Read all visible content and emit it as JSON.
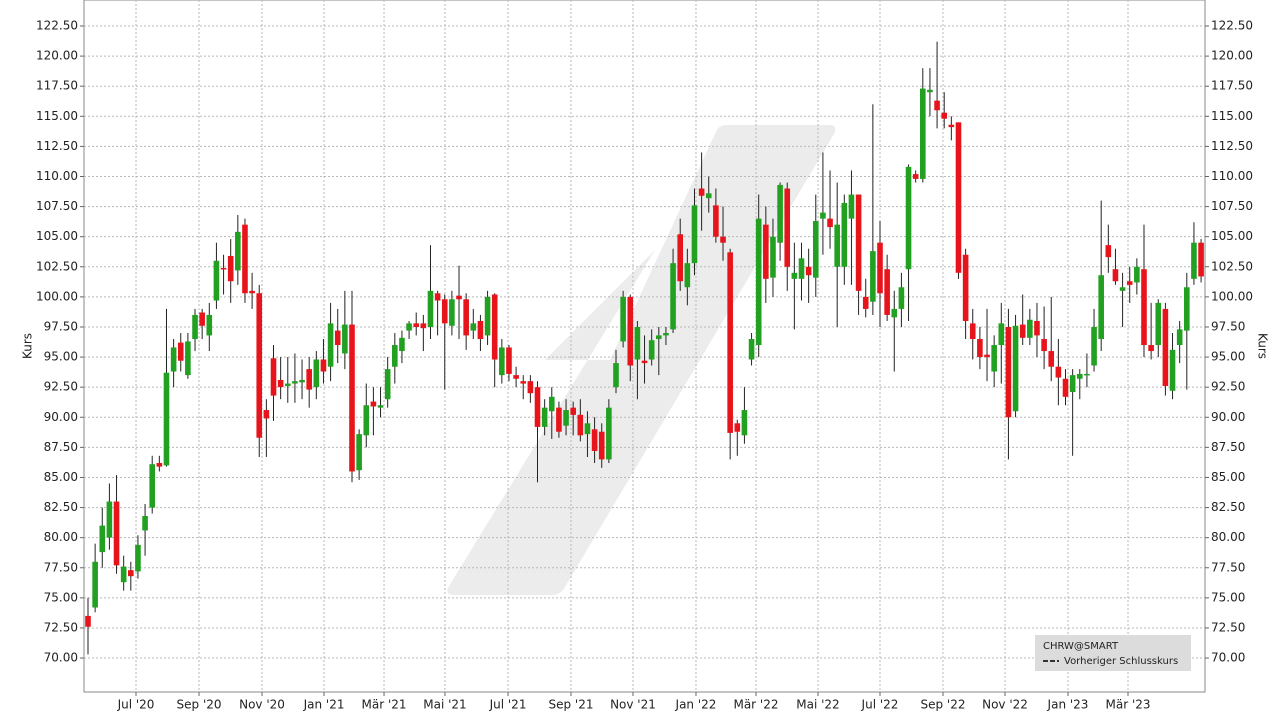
{
  "chart_data": {
    "type": "candlestick",
    "y_label": "Kurs",
    "y2_label": "Kurs",
    "up_color": "#22a022",
    "down_color": "#e8141c",
    "grid": true,
    "legend": "lower right",
    "series": [
      {
        "name": "CHRW@SMART",
        "open": [
          73.5,
          74.2,
          78.8,
          80,
          83,
          76.3,
          77.3,
          77.2,
          80.6,
          82.5,
          86.2,
          86,
          93.8,
          96.2,
          93.5,
          96.5,
          98.7,
          96.8,
          99.7,
          102.4,
          103.4,
          102.2,
          106,
          100.5,
          100.3,
          90.6,
          94.9,
          93.1,
          92.6,
          92.8,
          92.9,
          94,
          92.5,
          94.8,
          94.2,
          97.2,
          95.3,
          97.7,
          85.6,
          88.5,
          91.3,
          90.8,
          91.5,
          94.2,
          95.5,
          97.2,
          97.8,
          97.8,
          97.5,
          100.3,
          99.8,
          97.6,
          100.1,
          99.8,
          97.2,
          98,
          96.8,
          100.2,
          93.5,
          95.8,
          93.5,
          93,
          93,
          92.5,
          89.2,
          90.5,
          90.8,
          89.3,
          90.8,
          90.2,
          88.6,
          89,
          88.8,
          86.5,
          92.5,
          96.3,
          100,
          94.8,
          94.7,
          94.8,
          96.5,
          96.8,
          97.3,
          105.2,
          100.8,
          102.8,
          109,
          108.2,
          107.6,
          105,
          103.7,
          89.5,
          88.5,
          94.8,
          96,
          106,
          101.6,
          104.5,
          109,
          101.5,
          101.5,
          102.5,
          101.6,
          106.5,
          106.5,
          102.5,
          102.5,
          106.5,
          108.5,
          100,
          99.6,
          104.5,
          102.3,
          98.3,
          99,
          102.3,
          110.2,
          109.8,
          117,
          116.3,
          115.3,
          114.3,
          114.5,
          103.5,
          97.8,
          96.5,
          95.2,
          93.8,
          96,
          97.5,
          90.5,
          97.7,
          96.6,
          98,
          96.5,
          95.5,
          94.2,
          93.2,
          92.1,
          93.2,
          93.5,
          94.3,
          96.5,
          104.3,
          102.3,
          100.5,
          101.3,
          101.2,
          102.3,
          96,
          96,
          99,
          92.2,
          96,
          97.2,
          101.5,
          104.5
        ],
        "high": [
          75,
          79.5,
          82.5,
          84.5,
          85.2,
          78.5,
          78,
          80.2,
          82.8,
          86.8,
          86.8,
          99,
          96.5,
          97,
          97,
          99,
          99,
          99.5,
          104.5,
          103.5,
          104.8,
          106.8,
          106.5,
          102,
          101,
          91.5,
          96,
          95,
          95,
          95.3,
          94.8,
          95,
          95.5,
          96.5,
          99.5,
          99,
          100.5,
          100.5,
          89,
          92.8,
          92.5,
          92.5,
          95,
          97,
          97.2,
          98,
          98.7,
          98.5,
          104.3,
          100.5,
          100.2,
          100.5,
          102.6,
          100.3,
          99,
          98.5,
          100.5,
          100.3,
          96.5,
          96,
          94.2,
          93.5,
          93.5,
          93,
          91.5,
          92.5,
          91.3,
          91.5,
          91.3,
          91.5,
          90.5,
          90,
          89.5,
          91.5,
          95.6,
          100.5,
          100.2,
          98,
          96.8,
          97.3,
          97.5,
          97.5,
          104,
          106.5,
          104,
          109,
          112,
          110,
          109,
          107.5,
          104,
          89.8,
          92.5,
          97,
          108.5,
          107.5,
          106.5,
          109.5,
          109.5,
          104.5,
          104.5,
          104,
          108.5,
          112,
          110.5,
          109.5,
          108.5,
          110.5,
          108.5,
          101.5,
          116,
          106.3,
          103.5,
          100.5,
          102,
          111,
          110.5,
          119,
          119,
          121.2,
          117,
          115,
          114.5,
          104,
          99,
          97.5,
          99,
          96.8,
          99.5,
          99,
          98.5,
          100.2,
          99,
          99.5,
          99.2,
          100,
          96.5,
          94,
          94,
          94,
          95.3,
          99,
          108,
          106,
          104,
          102,
          102.5,
          103.2,
          106,
          99.5,
          99.8,
          99.5,
          97,
          98,
          102,
          106.2,
          104.8
        ],
        "low": [
          70.3,
          73.8,
          77.5,
          79,
          77,
          75.6,
          75.6,
          76.6,
          78.5,
          82,
          85.5,
          85.9,
          92.5,
          93.8,
          93.2,
          95.5,
          96.5,
          95.5,
          99,
          100.2,
          99.5,
          101,
          99.5,
          99,
          86.7,
          86.7,
          89.7,
          91.5,
          91.2,
          91.2,
          91.5,
          90.8,
          91.5,
          92.8,
          93,
          94.5,
          94,
          84.6,
          84.8,
          87.5,
          88.5,
          90,
          90.8,
          92.8,
          94.5,
          96.5,
          96.8,
          95.5,
          96.5,
          96.8,
          92.3,
          96.8,
          96.5,
          95.6,
          96.5,
          95.5,
          96,
          92.5,
          92.8,
          93,
          92.5,
          91.5,
          91.2,
          84.6,
          88.5,
          88.2,
          88.3,
          88.5,
          88.5,
          88,
          86.7,
          86.2,
          85.8,
          86.2,
          92,
          95.8,
          93,
          91.5,
          92.8,
          94.3,
          93.5,
          96,
          97,
          100.5,
          99.3,
          101.8,
          105.5,
          107,
          104.5,
          103,
          86.5,
          86.8,
          87.8,
          94.3,
          95,
          99.5,
          100,
          103,
          100.5,
          97.3,
          99.7,
          99.5,
          100,
          103.5,
          104,
          97.5,
          101,
          101,
          98.5,
          98.3,
          98.5,
          97.5,
          98,
          93.8,
          97.5,
          98,
          109.5,
          109.5,
          115,
          114,
          114,
          113,
          101.5,
          96.5,
          94.8,
          94,
          93,
          92.5,
          92.8,
          86.5,
          90,
          96,
          96,
          95,
          94,
          93,
          91,
          91,
          86.8,
          91.5,
          92.5,
          93.8,
          95.5,
          102,
          101,
          97.5,
          99.5,
          100.2,
          95,
          94.8,
          95,
          91.8,
          91.5,
          94.5,
          92.3,
          101,
          101.2
        ],
        "close": [
          72.6,
          78,
          81,
          83,
          77.7,
          77.6,
          76.8,
          79.4,
          81.8,
          86.1,
          85.9,
          93.7,
          95.8,
          94.7,
          96.3,
          98.5,
          97.6,
          98.5,
          103,
          102.3,
          101.3,
          105.4,
          100.3,
          100.3,
          88.3,
          89.9,
          91.8,
          92.5,
          92.8,
          93,
          93.1,
          92.3,
          94.8,
          93.8,
          97.8,
          96,
          97.7,
          85.5,
          88.6,
          91,
          90.9,
          91,
          94,
          96,
          96.6,
          97.8,
          97.5,
          97.4,
          100.5,
          99.7,
          97.8,
          99.8,
          99.8,
          96.8,
          97.8,
          96.5,
          100,
          94.8,
          95.8,
          93.6,
          93.2,
          92.8,
          92,
          89.2,
          90.8,
          91.7,
          88.8,
          90.6,
          90.2,
          88.5,
          89.5,
          87.2,
          86.5,
          90.8,
          94.5,
          100,
          94.3,
          97.5,
          94.5,
          96.4,
          96.8,
          97,
          102.8,
          101.3,
          102.8,
          107.6,
          108.4,
          108.6,
          105,
          104.5,
          88.7,
          88.8,
          90.6,
          96.5,
          106.5,
          101.5,
          105,
          109.3,
          102.5,
          102,
          103.2,
          101.8,
          106.3,
          107,
          105.8,
          106,
          107.8,
          108.5,
          100.5,
          99,
          103.8,
          100.3,
          98.5,
          99,
          100.8,
          110.8,
          109.8,
          117.3,
          117.2,
          115.5,
          114.8,
          114.1,
          102,
          98,
          96.5,
          95,
          95,
          96,
          97.8,
          90,
          97.6,
          96.6,
          98.1,
          96.8,
          95.5,
          94.2,
          93.3,
          91.7,
          93.5,
          93.6,
          93.6,
          97.5,
          101.8,
          103.3,
          101.3,
          100.8,
          101,
          102.5,
          96,
          95.5,
          99.5,
          92.6,
          95.6,
          97.3,
          100.8,
          104.5,
          101.7
        ]
      },
      {
        "name": "Vorheriger Schlusskurs",
        "color": "#333333"
      }
    ],
    "xlim": [
      -0.56,
      156.55
    ],
    "xticks": [
      {
        "value": 6.73,
        "label": "Jul '20"
      },
      {
        "value": 15.56,
        "label": "Sep '20"
      },
      {
        "value": 24.39,
        "label": "Nov '20"
      },
      {
        "value": 33.08,
        "label": "Jan '21"
      },
      {
        "value": 41.49,
        "label": "Mär '21"
      },
      {
        "value": 50.03,
        "label": "Mai '21"
      },
      {
        "value": 58.87,
        "label": "Jul '21"
      },
      {
        "value": 67.69,
        "label": "Sep '21"
      },
      {
        "value": 76.38,
        "label": "Nov '21"
      },
      {
        "value": 85.21,
        "label": "Jan '22"
      },
      {
        "value": 93.62,
        "label": "Mär '22"
      },
      {
        "value": 102.31,
        "label": "Mai '22"
      },
      {
        "value": 111.0,
        "label": "Jul '22"
      },
      {
        "value": 119.83,
        "label": "Sep '22"
      },
      {
        "value": 128.52,
        "label": "Nov '22"
      },
      {
        "value": 137.35,
        "label": "Jan '23"
      },
      {
        "value": 145.76,
        "label": "Mär '23"
      }
    ],
    "ylim": [
      67.18,
      124.66
    ],
    "yticks": [
      {
        "value": 70,
        "label": "70.00"
      },
      {
        "value": 72.5,
        "label": "72.50"
      },
      {
        "value": 75,
        "label": "75.00"
      },
      {
        "value": 77.5,
        "label": "77.50"
      },
      {
        "value": 80,
        "label": "80.00"
      },
      {
        "value": 82.5,
        "label": "82.50"
      },
      {
        "value": 85,
        "label": "85.00"
      },
      {
        "value": 87.5,
        "label": "87.50"
      },
      {
        "value": 90,
        "label": "90.00"
      },
      {
        "value": 92.5,
        "label": "92.50"
      },
      {
        "value": 95,
        "label": "95.00"
      },
      {
        "value": 97.5,
        "label": "97.50"
      },
      {
        "value": 100,
        "label": "100.00"
      },
      {
        "value": 102.5,
        "label": "102.50"
      },
      {
        "value": 105,
        "label": "105.00"
      },
      {
        "value": 107.5,
        "label": "107.50"
      },
      {
        "value": 110,
        "label": "110.00"
      },
      {
        "value": 112.5,
        "label": "112.50"
      },
      {
        "value": 115,
        "label": "115.00"
      },
      {
        "value": 117.5,
        "label": "117.50"
      },
      {
        "value": 120,
        "label": "120.00"
      },
      {
        "value": 122.5,
        "label": "122.50"
      }
    ]
  }
}
